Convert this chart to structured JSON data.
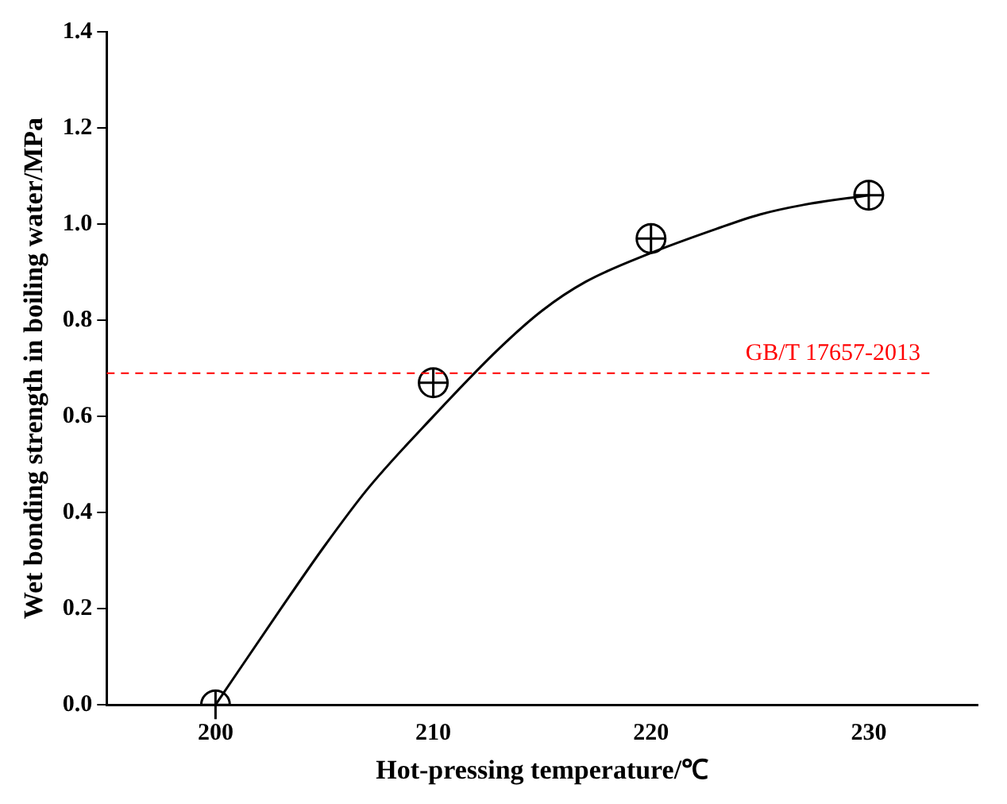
{
  "chart_data": {
    "type": "scatter",
    "xlabel": "Hot-pressing temperature/℃",
    "ylabel": "Wet bonding strength in boiling water/MPa",
    "series": [
      {
        "color": "#000000",
        "x": [
          200,
          210,
          220,
          230
        ],
        "values": [
          0,
          0.67,
          0.97,
          1.06
        ],
        "marker": "circle"
      },
      {
        "type": "line",
        "color": "#000000",
        "x": [
          200,
          203,
          205,
          207,
          210,
          213,
          215,
          217,
          220,
          223,
          225,
          227,
          230
        ],
        "values": [
          0,
          0.2,
          0.33,
          0.45,
          0.6,
          0.74,
          0.82,
          0.88,
          0.94,
          0.99,
          1.02,
          1.04,
          1.06
        ],
        "marker": "none"
      }
    ],
    "xlim": [
      195,
      235
    ],
    "xticks": [
      200,
      210,
      220,
      230
    ],
    "ylim": [
      0,
      1.4
    ],
    "yticks": [
      {
        "value": 0,
        "label": "0.0"
      },
      0.2,
      0.4,
      0.6,
      0.8,
      {
        "value": 1,
        "label": "1.0"
      },
      1.2,
      1.4
    ],
    "ref_lines": [
      {
        "axis": "y",
        "value": 0.69,
        "label": "GB/T 17657-2013",
        "color": "#ff0000",
        "line_style": "dashed"
      }
    ],
    "grid": false,
    "legend": false
  }
}
